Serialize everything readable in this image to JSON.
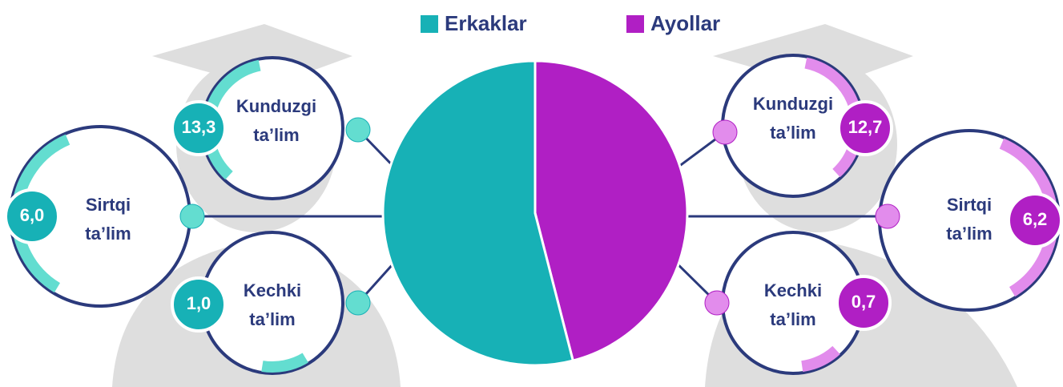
{
  "chart_data": {
    "type": "pie",
    "categories": [
      "Erkaklar",
      "Ayollar"
    ],
    "values": [
      54,
      46
    ],
    "colors": [
      "#17b1b6",
      "#b01fc4"
    ],
    "groups": [
      {
        "items": [
          {
            "label": [
              "Kunduzgi",
              "ta’lim"
            ],
            "value": 13.3,
            "value_label": "13,3"
          },
          {
            "label": [
              "Sirtqi",
              "ta’lim"
            ],
            "value": 6.0,
            "value_label": "6,0"
          },
          {
            "label": [
              "Kechki",
              "ta’lim"
            ],
            "value": 1.0,
            "value_label": "1,0"
          }
        ]
      },
      {
        "items": [
          {
            "label": [
              "Kunduzgi",
              "ta’lim"
            ],
            "value": 12.7,
            "value_label": "12,7"
          },
          {
            "label": [
              "Sirtqi",
              "ta’lim"
            ],
            "value": 6.2,
            "value_label": "6,2"
          },
          {
            "label": [
              "Kechki",
              "ta’lim"
            ],
            "value": 0.7,
            "value_label": "0,7"
          }
        ]
      }
    ]
  }
}
